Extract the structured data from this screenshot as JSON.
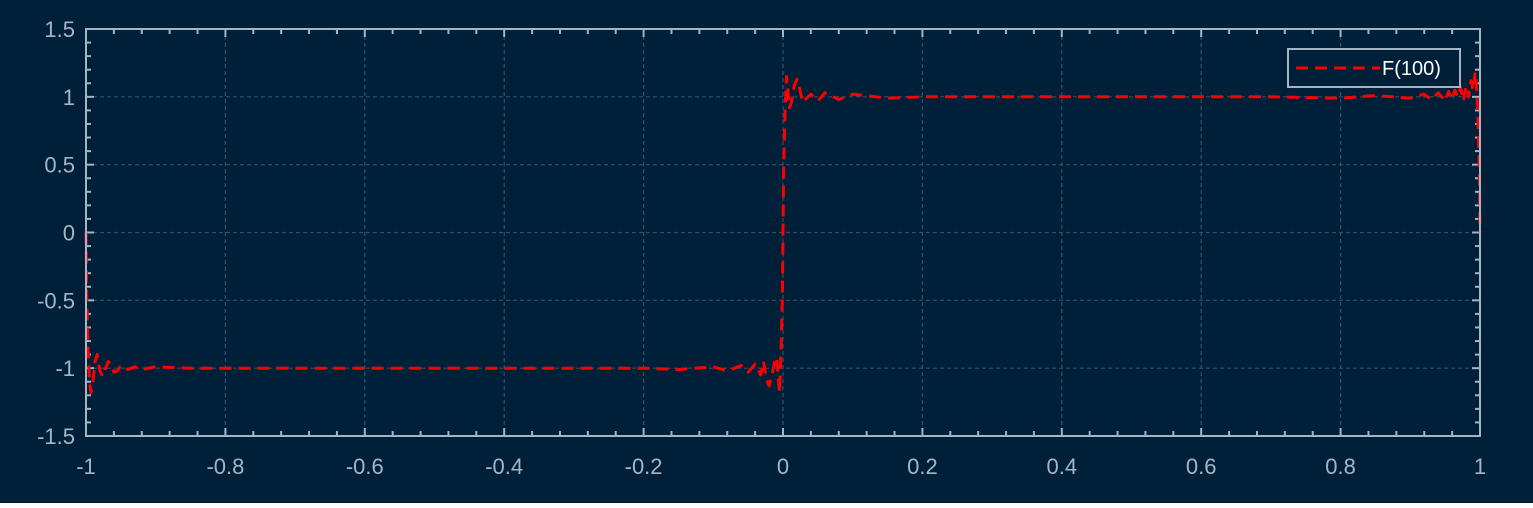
{
  "colors": {
    "background": "#001f38",
    "axes": "#a6b5c4",
    "grid": "#33506a",
    "series": "#ff0000",
    "legend_text": "#ffffff",
    "legend_border": "#a6b5c4"
  },
  "chart_data": {
    "type": "line",
    "title": "",
    "xlabel": "",
    "ylabel": "",
    "xlim": [
      -1,
      1
    ],
    "ylim": [
      -1.5,
      1.5
    ],
    "x_ticks": [
      -1,
      -0.8,
      -0.6,
      -0.4,
      -0.2,
      0,
      0.2,
      0.4,
      0.6,
      0.8,
      1
    ],
    "x_tick_labels": [
      "-1",
      "-0.8",
      "-0.6",
      "-0.4",
      "-0.2",
      "0",
      "0.2",
      "0.4",
      "0.6",
      "0.8",
      "1"
    ],
    "y_ticks": [
      -1.5,
      -1,
      -0.5,
      0,
      0.5,
      1,
      1.5
    ],
    "y_tick_labels": [
      "-1.5",
      "-1",
      "-0.5",
      "0",
      "0.5",
      "1",
      "1.5"
    ],
    "grid": true,
    "legend": {
      "placement": "top-right",
      "entries": [
        "F(100)"
      ]
    },
    "series": [
      {
        "name": "F(100)",
        "style": "dashed",
        "x": [
          -1,
          -0.999,
          -0.997,
          -0.995,
          -0.993,
          -0.99,
          -0.987,
          -0.984,
          -0.98,
          -0.976,
          -0.972,
          -0.968,
          -0.964,
          -0.96,
          -0.955,
          -0.95,
          -0.94,
          -0.93,
          -0.92,
          -0.9,
          -0.85,
          -0.8,
          -0.7,
          -0.6,
          -0.5,
          -0.4,
          -0.3,
          -0.2,
          -0.15,
          -0.1,
          -0.08,
          -0.06,
          -0.05,
          -0.04,
          -0.032,
          -0.028,
          -0.024,
          -0.02,
          -0.016,
          -0.012,
          -0.009,
          -0.007,
          -0.005,
          -0.003,
          -0.001,
          0,
          0.001,
          0.003,
          0.005,
          0.007,
          0.009,
          0.012,
          0.016,
          0.02,
          0.024,
          0.028,
          0.032,
          0.04,
          0.05,
          0.06,
          0.08,
          0.1,
          0.15,
          0.2,
          0.3,
          0.4,
          0.5,
          0.6,
          0.7,
          0.8,
          0.85,
          0.9,
          0.92,
          0.93,
          0.94,
          0.95,
          0.955,
          0.96,
          0.964,
          0.968,
          0.972,
          0.976,
          0.98,
          0.984,
          0.987,
          0.99,
          0.993,
          0.995,
          0.997,
          0.999,
          1
        ],
        "y": [
          0,
          -0.45,
          -0.85,
          -1.1,
          -1.18,
          -1.1,
          -0.95,
          -0.9,
          -1.02,
          -1.06,
          -1.0,
          -0.95,
          -0.97,
          -1.03,
          -1.02,
          -0.98,
          -1.01,
          -0.99,
          -1.01,
          -0.99,
          -1.0,
          -1.0,
          -1.0,
          -1.0,
          -1.0,
          -1.0,
          -1.0,
          -1.0,
          -1.01,
          -0.99,
          -1.02,
          -0.98,
          -1.03,
          -0.97,
          -1.05,
          -0.95,
          -1.08,
          -1.13,
          -1.06,
          -0.95,
          -0.92,
          -1.05,
          -1.18,
          -0.9,
          -0.5,
          0,
          0.5,
          0.9,
          1.15,
          1.05,
          0.92,
          0.96,
          1.08,
          1.13,
          1.06,
          0.96,
          0.98,
          1.02,
          0.97,
          1.03,
          0.98,
          1.02,
          0.99,
          1.0,
          1.0,
          1.0,
          1.0,
          1.0,
          1.0,
          0.99,
          1.01,
          0.99,
          1.02,
          0.98,
          1.03,
          0.97,
          1.04,
          0.98,
          1.05,
          1.0,
          1.07,
          0.97,
          1.08,
          1.0,
          1.12,
          1.05,
          1.18,
          1.08,
          0.85,
          0.45,
          0
        ]
      }
    ]
  }
}
